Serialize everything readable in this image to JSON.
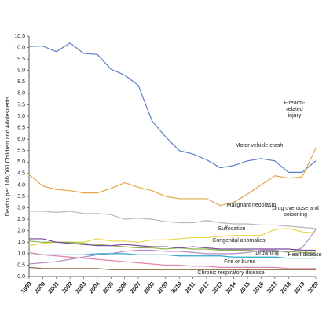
{
  "chart_data": {
    "type": "line",
    "y_label": "Deaths per 100,000 Children and Adolescents",
    "x": [
      1999,
      2000,
      2001,
      2002,
      2003,
      2004,
      2005,
      2006,
      2007,
      2008,
      2009,
      2010,
      2011,
      2012,
      2013,
      2014,
      2015,
      2016,
      2017,
      2018,
      2019,
      2020
    ],
    "xlim": [
      1999,
      2020
    ],
    "ylim": [
      0,
      10.5
    ],
    "yticks": [
      {
        "value": 0,
        "label": "0.0"
      },
      {
        "value": 0.5,
        "label": "0.5"
      },
      {
        "value": 1,
        "label": "1.0"
      },
      {
        "value": 1.5,
        "label": "1.5"
      },
      {
        "value": 2,
        "label": "2.0"
      },
      {
        "value": 2.5,
        "label": "2.5"
      },
      {
        "value": 3,
        "label": "3.0"
      },
      {
        "value": 3.5,
        "label": "3.5"
      },
      {
        "value": 4,
        "label": "4.0"
      },
      {
        "value": 4.5,
        "label": "4.5"
      },
      {
        "value": 5,
        "label": "5.0"
      },
      {
        "value": 5.5,
        "label": "5.5"
      },
      {
        "value": 6,
        "label": "6.0"
      },
      {
        "value": 6.5,
        "label": "6.5"
      },
      {
        "value": 7,
        "label": "7.0"
      },
      {
        "value": 7.5,
        "label": "7.5"
      },
      {
        "value": 8,
        "label": "8.0"
      },
      {
        "value": 8.5,
        "label": "8.5"
      },
      {
        "value": 9,
        "label": "9.0"
      },
      {
        "value": 9.5,
        "label": "9.5"
      },
      {
        "value": 10,
        "label": "10.0"
      },
      {
        "value": 10.5,
        "label": "10.5"
      }
    ],
    "series": [
      {
        "name": "Motor vehicle crash",
        "color": "#5a7fc4",
        "values": [
          10.05,
          10.07,
          9.82,
          10.2,
          9.75,
          9.7,
          9.05,
          8.8,
          8.35,
          6.8,
          6.1,
          5.5,
          5.35,
          5.1,
          4.75,
          4.85,
          5.05,
          5.15,
          5.05,
          4.55,
          4.55,
          5.05
        ]
      },
      {
        "name": "Firearm-related injury",
        "color": "#e2a54a",
        "values": [
          4.45,
          3.95,
          3.8,
          3.75,
          3.65,
          3.65,
          3.85,
          4.1,
          3.9,
          3.75,
          3.5,
          3.4,
          3.4,
          3.4,
          3.1,
          3.25,
          3.6,
          4.0,
          4.4,
          4.3,
          4.35,
          5.6
        ]
      },
      {
        "name": "Malignant neoplasm",
        "color": "#b8b8b8",
        "values": [
          2.85,
          2.85,
          2.8,
          2.85,
          2.75,
          2.75,
          2.7,
          2.5,
          2.55,
          2.5,
          2.4,
          2.35,
          2.35,
          2.45,
          2.35,
          2.3,
          2.3,
          2.25,
          2.25,
          2.2,
          2.15,
          2.1
        ]
      },
      {
        "name": "Drug overdose and poisoning",
        "color": "#b48cc4",
        "values": [
          0.55,
          0.6,
          0.65,
          0.75,
          0.85,
          0.95,
          1.0,
          1.1,
          1.15,
          1.15,
          1.1,
          1.1,
          1.05,
          1.0,
          1.0,
          1.0,
          1.05,
          1.15,
          1.15,
          1.05,
          1.25,
          2.05
        ]
      },
      {
        "name": "Suffocation",
        "color": "#e8d64e",
        "values": [
          1.35,
          1.45,
          1.5,
          1.5,
          1.5,
          1.65,
          1.55,
          1.55,
          1.5,
          1.6,
          1.6,
          1.65,
          1.7,
          1.7,
          1.75,
          1.8,
          1.8,
          1.8,
          2.05,
          2.1,
          1.95,
          1.9
        ]
      },
      {
        "name": "Congenital anomalies",
        "color": "#8fb24e",
        "values": [
          1.55,
          1.5,
          1.5,
          1.5,
          1.45,
          1.4,
          1.35,
          1.3,
          1.25,
          1.25,
          1.2,
          1.25,
          1.2,
          1.2,
          1.15,
          1.15,
          1.15,
          1.1,
          1.1,
          1.1,
          1.05,
          1.05
        ]
      },
      {
        "name": "Drowning",
        "color": "#7a4a9e",
        "values": [
          1.65,
          1.65,
          1.5,
          1.45,
          1.4,
          1.35,
          1.35,
          1.4,
          1.35,
          1.3,
          1.3,
          1.25,
          1.3,
          1.25,
          1.2,
          1.2,
          1.2,
          1.2,
          1.2,
          1.2,
          1.15,
          1.15
        ]
      },
      {
        "name": "Heart disease",
        "color": "#2aa8cc",
        "values": [
          0.95,
          0.95,
          0.95,
          0.95,
          0.95,
          1.0,
          1.0,
          1.0,
          0.95,
          0.95,
          0.95,
          0.9,
          0.9,
          0.9,
          0.9,
          0.85,
          0.85,
          0.85,
          0.85,
          0.8,
          0.8,
          0.8
        ]
      },
      {
        "name": "Fire or burns",
        "color": "#e283a8",
        "values": [
          1.05,
          0.95,
          0.9,
          0.85,
          0.8,
          0.75,
          0.7,
          0.65,
          0.6,
          0.55,
          0.5,
          0.5,
          0.45,
          0.45,
          0.4,
          0.4,
          0.4,
          0.4,
          0.4,
          0.35,
          0.35,
          0.35
        ]
      },
      {
        "name": "Chronic respiratory disease",
        "color": "#8a6c3c",
        "values": [
          0.4,
          0.35,
          0.35,
          0.35,
          0.35,
          0.35,
          0.3,
          0.3,
          0.3,
          0.3,
          0.3,
          0.3,
          0.3,
          0.3,
          0.3,
          0.3,
          0.3,
          0.3,
          0.3,
          0.3,
          0.3,
          0.3
        ]
      }
    ]
  }
}
